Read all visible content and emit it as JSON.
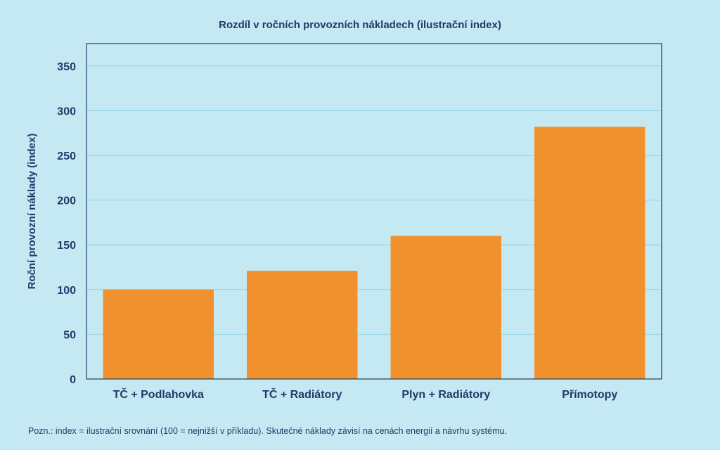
{
  "chart_data": {
    "type": "bar",
    "title": "Rozdíl v ročních provozních nákladech (ilustrační index)",
    "ylabel": "Roční provozní náklady (index)",
    "xlabel": "",
    "categories": [
      "TČ + Podlahovka",
      "TČ + Radiátory",
      "Plyn + Radiátory",
      "Přímotopy"
    ],
    "values": [
      100,
      121,
      160,
      282
    ],
    "ylim": [
      0,
      375
    ],
    "yticks": [
      0,
      50,
      100,
      150,
      200,
      250,
      300,
      350
    ],
    "grid": true,
    "bar_color": "#f0912e",
    "grid_color": "#8fcfe6",
    "axis_color": "#1f3a6b"
  },
  "note": "Pozn.: index = ilustrační srovnání (100 = nejnižší v příkladu). Skutečné náklady závisí na cenách energií a návrhu systému."
}
